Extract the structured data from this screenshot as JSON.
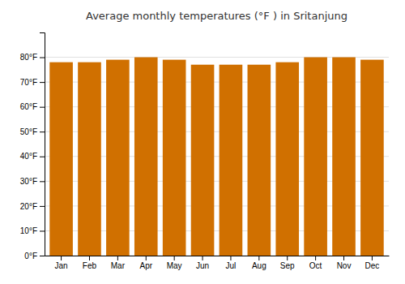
{
  "chart_data": {
    "type": "bar",
    "title": "Average monthly temperatures (°F ) in Sritanjung",
    "categories": [
      "Jan",
      "Feb",
      "Mar",
      "Apr",
      "May",
      "Jun",
      "Jul",
      "Aug",
      "Sep",
      "Oct",
      "Nov",
      "Dec"
    ],
    "values": [
      78,
      78,
      79,
      80,
      79,
      77,
      77,
      77,
      78,
      80,
      80,
      79
    ],
    "color": "#D07000",
    "ylim": [
      0,
      90
    ],
    "yticks": [
      {
        "value": 0,
        "label": "0°F"
      },
      {
        "value": 10,
        "label": "10°F"
      },
      {
        "value": 20,
        "label": "20°F"
      },
      {
        "value": 30,
        "label": "30°F"
      },
      {
        "value": 40,
        "label": "40°F"
      },
      {
        "value": 50,
        "label": "50°F"
      },
      {
        "value": 60,
        "label": "60°F"
      },
      {
        "value": 70,
        "label": "70°F"
      },
      {
        "value": 80,
        "label": "80°F"
      }
    ],
    "grid": true
  }
}
